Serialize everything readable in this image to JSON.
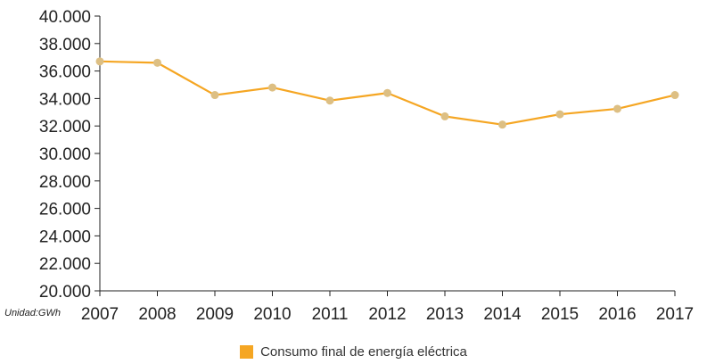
{
  "chart_data": {
    "type": "line",
    "x": [
      "2007",
      "2008",
      "2009",
      "2010",
      "2011",
      "2012",
      "2013",
      "2014",
      "2015",
      "2016",
      "2017"
    ],
    "series": [
      {
        "name": "Consumo final de energía eléctrica",
        "values": [
          36700,
          36600,
          34250,
          34800,
          33850,
          34400,
          32700,
          32100,
          32850,
          33250,
          34250
        ]
      }
    ],
    "ylim": [
      20000,
      40000
    ],
    "yticks": [
      20000,
      22000,
      24000,
      26000,
      28000,
      30000,
      32000,
      34000,
      36000,
      38000,
      40000
    ],
    "ytick_labels": [
      "20.000",
      "22.000",
      "24.000",
      "26.000",
      "28.000",
      "30.000",
      "32.000",
      "34.000",
      "36.000",
      "38.000",
      "40.000"
    ],
    "unit_label": "Unidad:GWh",
    "grid": false,
    "legend_position": "bottom-center",
    "colors": {
      "line": "#F5A623",
      "marker": "#DDBF83",
      "axis": "#222222"
    }
  }
}
